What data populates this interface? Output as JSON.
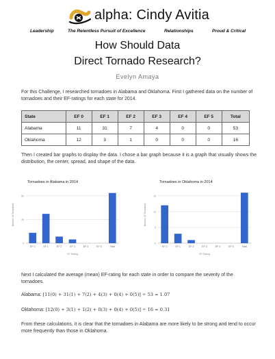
{
  "brand": {
    "name": "alpha: Cindy Avitia",
    "colors": {
      "accent": "#e0a82e",
      "text": "#111111"
    }
  },
  "taglines": [
    "Leadership",
    "The Relentless Pursuit of Excellence",
    "Relationships",
    "Proud & Critical"
  ],
  "doc": {
    "title_line1": "How Should Data",
    "title_line2": "Direct Tornado Research?",
    "author": "Evelyn Amaya",
    "intro": "For this Challenge, I researched tornadoes in Alabama and Oklahoma. First I gathered data on the number of tornadoes and their EF-ratings for each state for 2014.",
    "graph_text": "Then I created bar graphs to display the data. I chose a bar graph because it is a graph that visually shows the distribution, the center, spread, and shape of the data.",
    "mean_text": "Next I calculated the average (mean) EF-rating for each state in order to compare the severity of the tornadoes.",
    "alabama_label": "Alabama:",
    "alabama_eq": "[11(0) + 31(1) + 7(2) + 4(3) + 0(4) + 0(5)] ÷ 53 = 1.07",
    "oklahoma_label": "Oklahoma:",
    "oklahoma_eq": "[12(0) + 3(1) + 1(2) + 0(3) + 0(4) + 0(5)] ÷ 16 = 0.31",
    "conclusion": "From these calculations, it is clear that the tornadoes in Alabama are more likely to be strong and tend to occur more frequently than those in Oklahoma."
  },
  "table": {
    "headers": [
      "State",
      "EF 0",
      "EF 1",
      "EF 2",
      "EF 3",
      "EF 4",
      "EF 5",
      "Total"
    ],
    "rows": [
      [
        "Alabama",
        "11",
        "31",
        "7",
        "4",
        "0",
        "0",
        "53"
      ],
      [
        "Oklahoma",
        "12",
        "3",
        "1",
        "0",
        "0",
        "0",
        "16"
      ]
    ]
  },
  "chart_data": [
    {
      "type": "bar",
      "title": "Tornadoes in Alabama in 2014",
      "categories": [
        "EF 0",
        "EF 1",
        "EF 2",
        "EF 3",
        "EF 4",
        "EF 5",
        "Total"
      ],
      "values": [
        11,
        31,
        7,
        4,
        0,
        0,
        53
      ],
      "xlabel": "EF Rating",
      "ylabel": "Number of Tornadoes",
      "yticks": [
        0,
        25,
        50
      ],
      "ylim": [
        0,
        60
      ],
      "color": "#3366cc"
    },
    {
      "type": "bar",
      "title": "Tornadoes in Oklahoma in 2014",
      "categories": [
        "EF 0",
        "EF 1",
        "EF 2",
        "EF 3",
        "EF 4",
        "EF 5",
        "Total"
      ],
      "values": [
        12,
        3,
        1,
        0,
        0,
        0,
        16
      ],
      "xlabel": "EF Rating",
      "ylabel": "Number of Tornadoes",
      "yticks": [
        0,
        5,
        10,
        15
      ],
      "ylim": [
        0,
        18
      ],
      "color": "#3366cc"
    }
  ]
}
